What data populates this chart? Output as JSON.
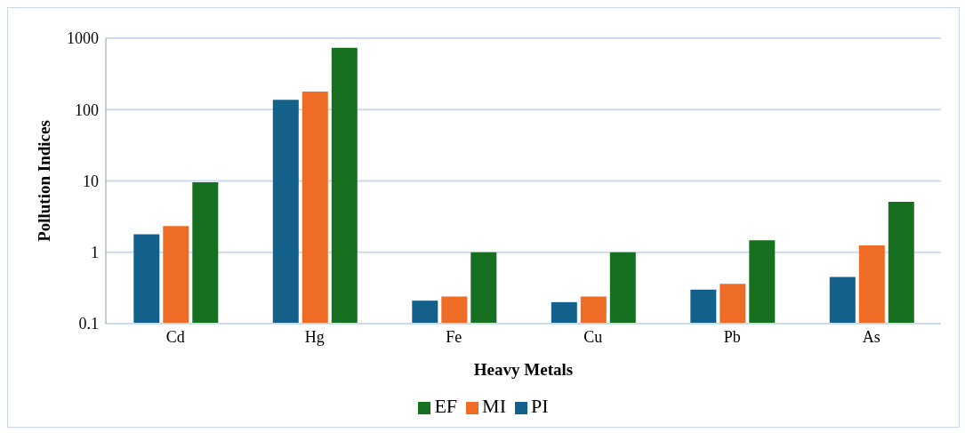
{
  "chart_data": {
    "type": "bar",
    "xlabel": "Heavy Metals",
    "ylabel": "Pollution Indices",
    "categories": [
      "Cd",
      "Hg",
      "Fe",
      "Cu",
      "Pb",
      "As"
    ],
    "series": [
      {
        "name": "PI",
        "color": "#13618a",
        "values": [
          1.79,
          137,
          0.21,
          0.2,
          0.3,
          0.45
        ]
      },
      {
        "name": "MI",
        "color": "#ef6c26",
        "values": [
          2.33,
          179,
          0.24,
          0.24,
          0.36,
          1.25
        ]
      },
      {
        "name": "EF",
        "color": "#16701f",
        "values": [
          9.6,
          736,
          1.0,
          1.0,
          1.47,
          5.1
        ]
      }
    ],
    "log": "y",
    "ylim": [
      0.1,
      1000
    ],
    "yticks": [
      0.1,
      1,
      10,
      100,
      1000
    ],
    "grid": "y",
    "legend": "bottom"
  }
}
